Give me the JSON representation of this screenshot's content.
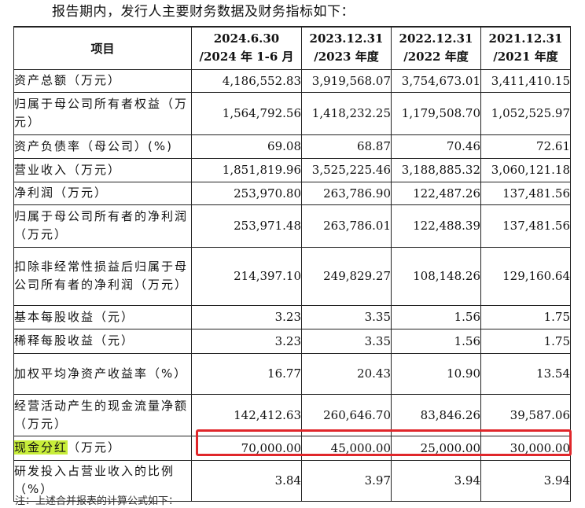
{
  "intro": "报告期内，发行人主要财务数据及财务指标如下：",
  "header": {
    "item": "项目",
    "periods": [
      {
        "line1": "2024.6.30",
        "line2": "/2024 年 1-6 月"
      },
      {
        "line1": "2023.12.31",
        "line2": "/2023 年度"
      },
      {
        "line1": "2022.12.31",
        "line2": "/2022 年度"
      },
      {
        "line1": "2021.12.31",
        "line2": "/2021 年度"
      }
    ]
  },
  "rows": [
    {
      "label": "资产总额（万元）",
      "values": [
        "4,186,552.83",
        "3,919,568.07",
        "3,754,673.01",
        "3,411,410.15"
      ]
    },
    {
      "label": "归属于母公司所有者权益（万元）",
      "values": [
        "1,564,792.56",
        "1,418,232.25",
        "1,179,508.70",
        "1,052,525.97"
      ]
    },
    {
      "label": "资产负债率（母公司）(%)",
      "values": [
        "69.08",
        "68.87",
        "70.46",
        "72.61"
      ]
    },
    {
      "label": "营业收入（万元）",
      "values": [
        "1,851,819.96",
        "3,525,225.46",
        "3,188,885.32",
        "3,060,121.18"
      ]
    },
    {
      "label": "净利润（万元）",
      "values": [
        "253,970.80",
        "263,786.90",
        "122,487.26",
        "137,481.56"
      ]
    },
    {
      "label": "归属于母公司所有者的净利润（万元）",
      "values": [
        "253,971.48",
        "263,786.01",
        "122,488.39",
        "137,481.56"
      ]
    },
    {
      "label": "扣除非经常性损益后归属于母公司所有者的净利润（万元）",
      "values": [
        "214,397.10",
        "249,829.27",
        "108,148.26",
        "129,160.64"
      ]
    },
    {
      "label": "基本每股收益（元）",
      "values": [
        "3.23",
        "3.35",
        "1.56",
        "1.75"
      ]
    },
    {
      "label": "稀释每股收益（元）",
      "values": [
        "3.23",
        "3.35",
        "1.56",
        "1.75"
      ]
    },
    {
      "label": "加权平均净资产收益率（%）",
      "values": [
        "16.77",
        "20.43",
        "10.90",
        "13.54"
      ]
    },
    {
      "label": "经营活动产生的现金流量净额（万元）",
      "values": [
        "142,412.63",
        "260,646.70",
        "83,846.26",
        "39,587.06"
      ]
    },
    {
      "label_highlight": "现金分红",
      "label_rest": "（万元）",
      "values": [
        "70,000.00",
        "45,000.00",
        "25,000.00",
        "30,000.00"
      ]
    },
    {
      "label": "研发投入占营业收入的比例（%）",
      "values": [
        "3.84",
        "3.97",
        "3.94",
        "3.94"
      ]
    }
  ],
  "footnote": "注：上述合并报表的计算公式如下：",
  "colors": {
    "highlight": "#c8ee3a",
    "box": "#e0262a"
  }
}
